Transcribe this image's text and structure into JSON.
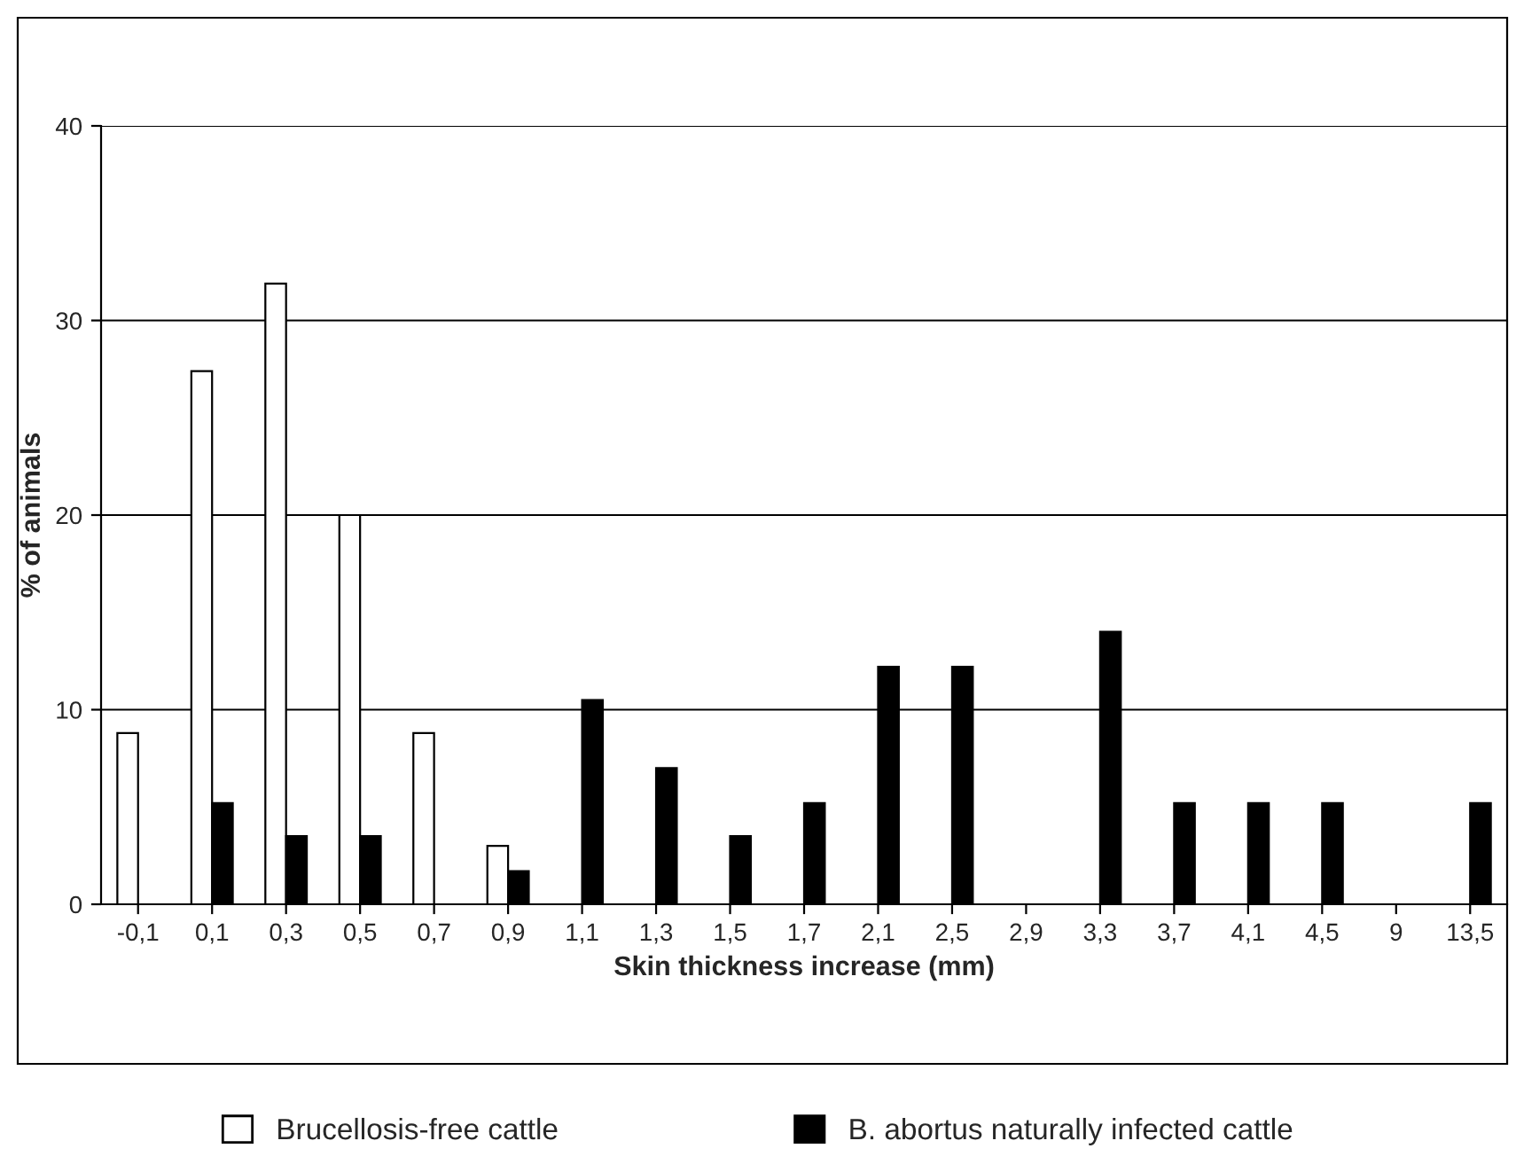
{
  "chart_data": {
    "type": "bar",
    "xlabel": "Skin thickness increase (mm)",
    "ylabel": "% of animals",
    "categories": [
      "-0,1",
      "0,1",
      "0,3",
      "0,5",
      "0,7",
      "0,9",
      "1,1",
      "1,3",
      "1,5",
      "1,7",
      "2,1",
      "2,5",
      "2,9",
      "3,3",
      "3,7",
      "4,1",
      "4,5",
      "9",
      "13,5"
    ],
    "series": [
      {
        "name": "Brucellosis-free cattle",
        "color": "#ffffff",
        "values": [
          8.8,
          27.4,
          31.9,
          20.0,
          8.8,
          3.0,
          null,
          null,
          null,
          null,
          null,
          null,
          null,
          null,
          null,
          null,
          null,
          null,
          null
        ]
      },
      {
        "name": "B. abortus naturally infected cattle",
        "color": "#000000",
        "values": [
          null,
          5.2,
          3.5,
          3.5,
          null,
          1.7,
          10.5,
          7.0,
          3.5,
          5.2,
          12.2,
          12.2,
          null,
          14.0,
          5.2,
          5.2,
          5.2,
          null,
          5.2
        ]
      }
    ],
    "ylim": [
      0,
      40
    ],
    "yticks": [
      0,
      10,
      20,
      30,
      40
    ],
    "grid": "y",
    "legend": "bottom"
  }
}
